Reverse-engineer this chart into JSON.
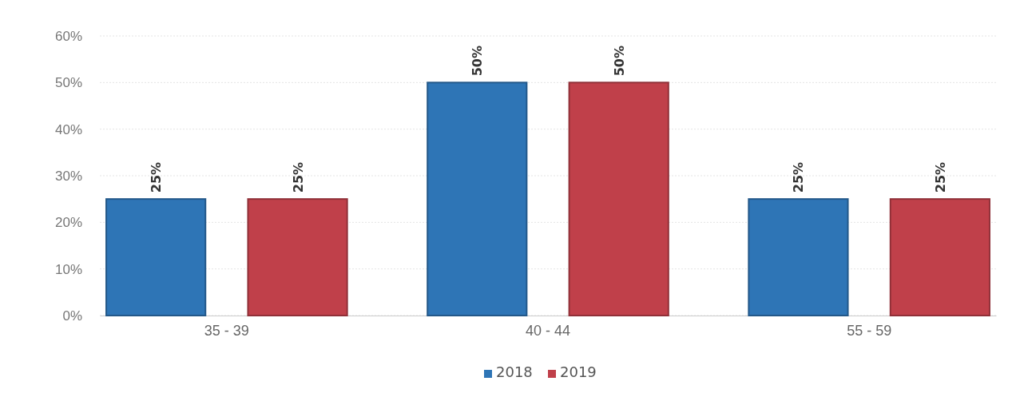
{
  "chart_data": {
    "type": "bar",
    "categories": [
      "35 - 39",
      "40 - 44",
      "55 - 59"
    ],
    "series": [
      {
        "name": "2018",
        "color": "#2e75b6",
        "values": [
          25,
          50,
          25
        ],
        "value_labels": [
          "25%",
          "50%",
          "25%"
        ]
      },
      {
        "name": "2019",
        "color": "#c0404a",
        "values": [
          25,
          50,
          25
        ],
        "value_labels": [
          "25%",
          "50%",
          "25%"
        ]
      }
    ],
    "ylim": [
      0,
      60
    ],
    "yticks": [
      {
        "value": 0,
        "label": "0%"
      },
      {
        "value": 10,
        "label": "10%"
      },
      {
        "value": 20,
        "label": "20%"
      },
      {
        "value": 30,
        "label": "30%"
      },
      {
        "value": 40,
        "label": "40%"
      },
      {
        "value": 50,
        "label": "50%"
      },
      {
        "value": 60,
        "label": "60%"
      }
    ],
    "grid": "y",
    "legend": "bottom"
  }
}
